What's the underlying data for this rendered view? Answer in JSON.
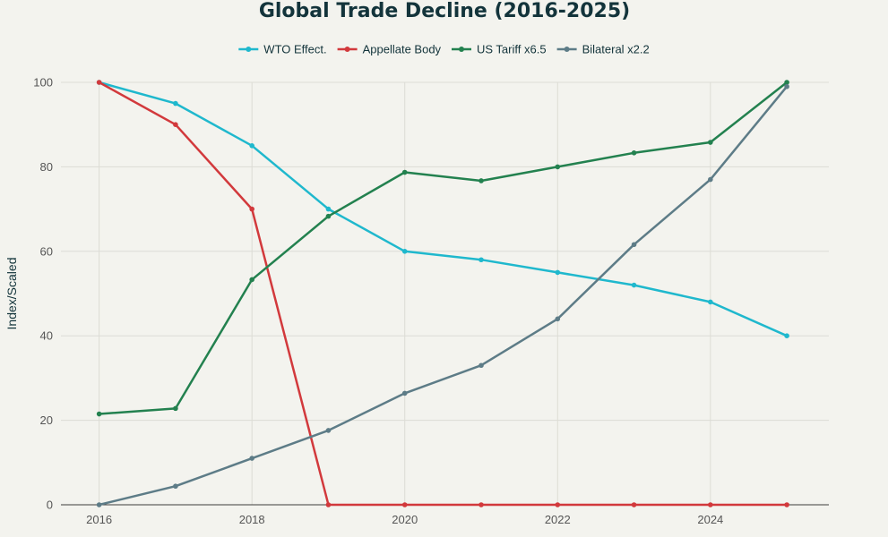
{
  "chart_data": {
    "type": "line",
    "title": "Global Trade Decline (2016-2025)",
    "xlabel": "",
    "ylabel": "Index/Scaled",
    "x": [
      2016,
      2017,
      2018,
      2019,
      2020,
      2021,
      2022,
      2023,
      2024,
      2025
    ],
    "xlim": [
      2015.5,
      2025.55
    ],
    "ylim": [
      0,
      100
    ],
    "xticks": [
      2016,
      2018,
      2020,
      2022,
      2024
    ],
    "yticks": [
      0,
      20,
      40,
      60,
      80,
      100
    ],
    "grid": true,
    "legend_position": "top-center",
    "series": [
      {
        "name": "WTO Effect.",
        "color": "#1fb8cd",
        "values": [
          100,
          95,
          85,
          70,
          60,
          58,
          55,
          52,
          48,
          40
        ]
      },
      {
        "name": "Appellate Body",
        "color": "#d2393c",
        "values": [
          100,
          90,
          70,
          0,
          0,
          0,
          0,
          0,
          0,
          0
        ]
      },
      {
        "name": "US Tariff x6.5",
        "color": "#23814f",
        "values": [
          21.5,
          22.8,
          53.3,
          68.3,
          78.7,
          76.7,
          80,
          83.3,
          85.8,
          100
        ]
      },
      {
        "name": "Bilateral x2.2",
        "color": "#5d7c87",
        "values": [
          0,
          4.4,
          11,
          17.6,
          26.4,
          33,
          44,
          61.6,
          77,
          99
        ]
      }
    ]
  }
}
